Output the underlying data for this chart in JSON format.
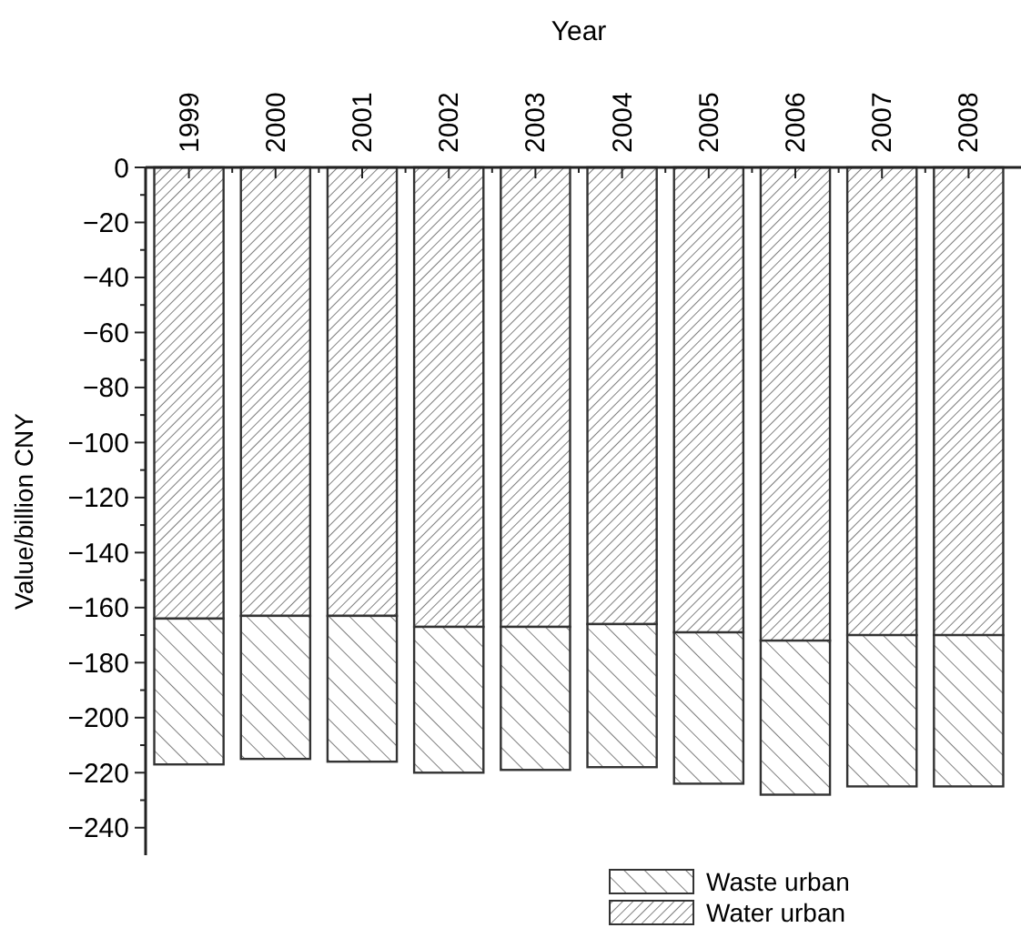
{
  "chart_data": {
    "type": "bar",
    "stacked": true,
    "xlabel": "Year",
    "ylabel": "Value/billion CNY",
    "categories": [
      "1999",
      "2000",
      "2001",
      "2002",
      "2003",
      "2004",
      "2005",
      "2006",
      "2007",
      "2008"
    ],
    "series": [
      {
        "name": "Water urban",
        "color": "#333333",
        "values": [
          -164,
          -163,
          -163,
          -167,
          -167,
          -166,
          -169,
          -172,
          -170,
          -170
        ]
      },
      {
        "name": "Waste urban",
        "color": "#333333",
        "values": [
          -53,
          -52,
          -53,
          -53,
          -52,
          -52,
          -55,
          -56,
          -55,
          -55
        ]
      }
    ],
    "ylim": [
      -250,
      0
    ],
    "yticks": [
      0,
      {
        "value": -10,
        "label": null
      },
      -20,
      {
        "value": -30,
        "label": null
      },
      -40,
      {
        "value": -50,
        "label": null
      },
      -60,
      {
        "value": -70,
        "label": null
      },
      -80,
      {
        "value": -90,
        "label": null
      },
      -100,
      {
        "value": -110,
        "label": null
      },
      -120,
      {
        "value": -130,
        "label": null
      },
      -140,
      {
        "value": -150,
        "label": null
      },
      -160,
      {
        "value": -170,
        "label": null
      },
      -180,
      {
        "value": -190,
        "label": null
      },
      -200,
      {
        "value": -210,
        "label": null
      },
      -220,
      {
        "value": -230,
        "label": null
      },
      -240
    ],
    "legend": "bottom right"
  }
}
